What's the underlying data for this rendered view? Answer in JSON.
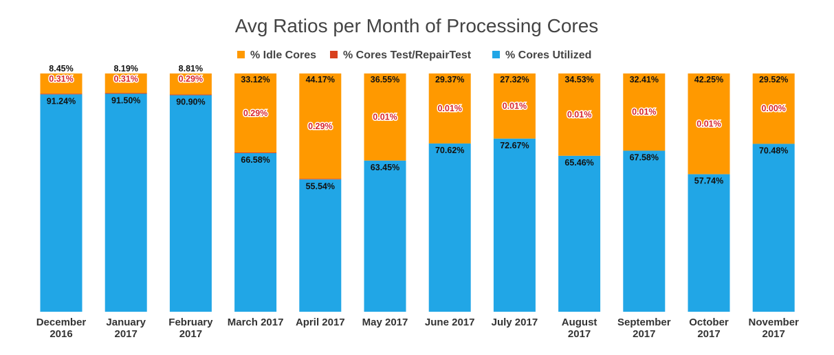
{
  "chart_data": {
    "type": "bar",
    "stacked": true,
    "percent_stacked": true,
    "title": "Avg Ratios per Month of Processing Cores",
    "categories": [
      [
        "December",
        "2016"
      ],
      [
        "January",
        "2017"
      ],
      [
        "February",
        "2017"
      ],
      [
        "March 2017"
      ],
      [
        "April 2017"
      ],
      [
        "May 2017"
      ],
      [
        "June 2017"
      ],
      [
        "July 2017"
      ],
      [
        "August",
        "2017"
      ],
      [
        "September",
        "2017"
      ],
      [
        "October",
        "2017"
      ],
      [
        "November",
        "2017"
      ]
    ],
    "series": [
      {
        "name": "% Cores Utilized",
        "color": "#21a6e6",
        "values": [
          91.24,
          91.5,
          90.9,
          66.58,
          55.54,
          63.45,
          70.62,
          72.67,
          65.46,
          67.58,
          57.74,
          70.48
        ],
        "labels": [
          "91.24%",
          "91.50%",
          "90.90%",
          "66.58%",
          "55.54%",
          "63.45%",
          "70.62%",
          "72.67%",
          "65.46%",
          "67.58%",
          "57.74%",
          "70.48%"
        ]
      },
      {
        "name": "% Cores Test/RepairTest",
        "color": "#d8401e",
        "values": [
          0.31,
          0.31,
          0.29,
          0.29,
          0.29,
          0.01,
          0.01,
          0.01,
          0.01,
          0.01,
          0.01,
          0.0
        ],
        "labels": [
          "0.31%",
          "0.31%",
          "0.29%",
          "0.29%",
          "0.29%",
          "0.01%",
          "0.01%",
          "0.01%",
          "0.01%",
          "0.01%",
          "0.01%",
          "0.00%"
        ]
      },
      {
        "name": "% Idle Cores",
        "color": "#ff9900",
        "values": [
          8.45,
          8.19,
          8.81,
          33.12,
          44.17,
          36.55,
          29.37,
          27.32,
          34.53,
          32.41,
          42.25,
          29.52
        ],
        "labels": [
          "8.45%",
          "8.19%",
          "8.81%",
          "33.12%",
          "44.17%",
          "36.55%",
          "29.37%",
          "27.32%",
          "34.53%",
          "32.41%",
          "42.25%",
          "29.52%"
        ]
      }
    ],
    "legend": {
      "position": "top",
      "order": [
        "% Idle Cores",
        "% Cores Test/RepairTest",
        "% Cores Utilized"
      ]
    },
    "ylim": [
      0,
      100
    ],
    "grid": false
  }
}
